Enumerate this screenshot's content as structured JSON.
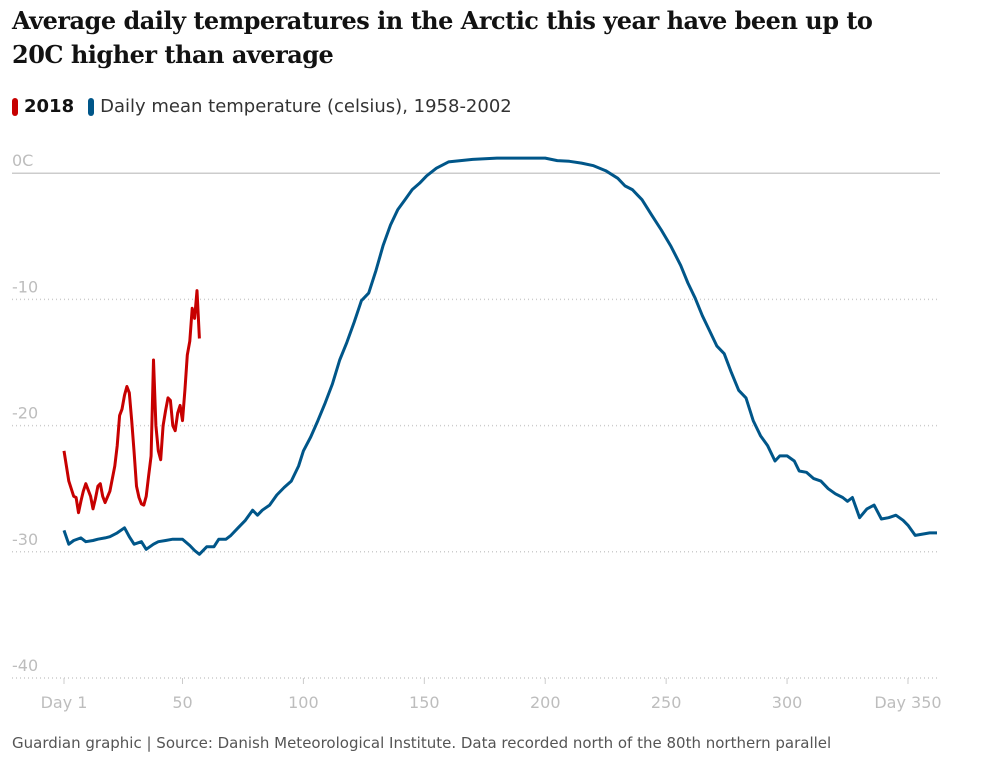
{
  "chart_data": {
    "type": "line",
    "title": "Average daily temperatures in the Arctic this year have been up to 20C higher than average",
    "source": "Guardian graphic | Source: Danish Meteorological Institute. Data recorded north of the 80th northern parallel",
    "xlim": [
      1,
      362
    ],
    "ylim": [
      -40,
      2
    ],
    "xticks": [
      {
        "value": 1,
        "label": "Day 1"
      },
      50,
      100,
      150,
      200,
      250,
      300,
      {
        "value": 350,
        "label": "Day 350"
      }
    ],
    "yticks": [
      {
        "value": 0,
        "label": "0C"
      },
      -10,
      -20,
      -30,
      -40
    ],
    "grid": true,
    "series": [
      {
        "name": "2018",
        "color": "#c70000",
        "x": [
          1,
          2,
          3,
          5,
          6,
          7,
          8,
          9,
          10,
          12,
          13,
          14,
          15,
          16,
          17,
          18,
          20,
          22,
          23,
          24,
          25,
          26,
          27,
          28,
          29,
          30,
          31,
          32,
          33,
          34,
          35,
          36,
          37,
          38,
          39,
          40,
          41,
          42,
          43,
          44,
          45,
          46,
          47,
          48,
          49,
          50,
          51,
          52,
          53,
          54,
          55,
          56,
          57
        ],
        "values": [
          -22,
          -23.2,
          -24.4,
          -25.6,
          -25.7,
          -26.9,
          -26,
          -25.2,
          -24.6,
          -25.6,
          -26.6,
          -25.8,
          -24.8,
          -24.6,
          -25.6,
          -26.1,
          -25.2,
          -23.2,
          -21.6,
          -19.2,
          -18.7,
          -17.6,
          -16.9,
          -17.4,
          -19.6,
          -22.1,
          -24.8,
          -25.7,
          -26.2,
          -26.3,
          -25.6,
          -24,
          -22.4,
          -14.8,
          -20,
          -22,
          -22.7,
          -20,
          -18.8,
          -17.8,
          -18,
          -20,
          -20.4,
          -19,
          -18.4,
          -19.6,
          -17.2,
          -14.4,
          -13.3,
          -10.7,
          -11.5,
          -9.3,
          -13.1
        ]
      },
      {
        "name": "Daily mean temperature (celsius), 1958-2002",
        "color": "#005689",
        "x": [
          1,
          3,
          5,
          8,
          10,
          13,
          15,
          18,
          20,
          23,
          26,
          28,
          30,
          33,
          35,
          38,
          40,
          43,
          46,
          50,
          53,
          55,
          57,
          60,
          63,
          65,
          68,
          70,
          73,
          76,
          79,
          81,
          83,
          86,
          89,
          92,
          95,
          98,
          100,
          103,
          106,
          109,
          112,
          115,
          118,
          121,
          124,
          127,
          130,
          133,
          136,
          139,
          142,
          145,
          148,
          151,
          155,
          160,
          165,
          170,
          180,
          190,
          200,
          205,
          210,
          215,
          220,
          225,
          230,
          233,
          236,
          240,
          244,
          248,
          252,
          256,
          259,
          262,
          265,
          268,
          271,
          274,
          277,
          280,
          283,
          286,
          289,
          292,
          295,
          297,
          300,
          303,
          305,
          308,
          311,
          314,
          317,
          320,
          323,
          325,
          327,
          330,
          333,
          336,
          339,
          342,
          345,
          348,
          350,
          353,
          356,
          359,
          362
        ],
        "values": [
          -28.3,
          -29.4,
          -29.1,
          -28.9,
          -29.2,
          -29.1,
          -29,
          -28.9,
          -28.8,
          -28.5,
          -28.1,
          -28.8,
          -29.4,
          -29.2,
          -29.8,
          -29.4,
          -29.2,
          -29.1,
          -29,
          -29,
          -29.5,
          -29.9,
          -30.2,
          -29.6,
          -29.6,
          -29,
          -29,
          -28.7,
          -28.1,
          -27.5,
          -26.7,
          -27.1,
          -26.7,
          -26.3,
          -25.5,
          -24.9,
          -24.4,
          -23.2,
          -22,
          -20.9,
          -19.6,
          -18.2,
          -16.7,
          -14.8,
          -13.4,
          -11.8,
          -10.1,
          -9.5,
          -7.7,
          -5.7,
          -4.1,
          -2.9,
          -2.1,
          -1.3,
          -0.8,
          -0.2,
          0.4,
          0.9,
          1,
          1.1,
          1.2,
          1.2,
          1.2,
          1,
          0.95,
          0.8,
          0.6,
          0.2,
          -0.4,
          -1,
          -1.3,
          -2.1,
          -3.3,
          -4.5,
          -5.8,
          -7.3,
          -8.7,
          -9.9,
          -11.3,
          -12.5,
          -13.7,
          -14.3,
          -15.8,
          -17.2,
          -17.8,
          -19.6,
          -20.8,
          -21.6,
          -22.8,
          -22.4,
          -22.4,
          -22.8,
          -23.6,
          -23.7,
          -24.2,
          -24.4,
          -25,
          -25.4,
          -25.7,
          -26,
          -25.7,
          -27.3,
          -26.6,
          -26.3,
          -27.4,
          -27.3,
          -27.1,
          -27.5,
          -27.9,
          -28.7,
          -28.6,
          -28.5,
          -28.5
        ]
      }
    ]
  }
}
